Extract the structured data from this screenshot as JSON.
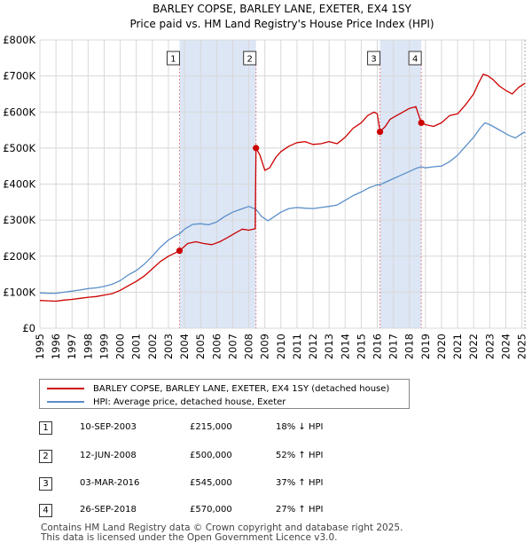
{
  "chart_data": {
    "type": "line",
    "title": "BARLEY COPSE, BARLEY LANE, EXETER, EX4 1SY",
    "subtitle": "Price paid vs. HM Land Registry's House Price Index (HPI)",
    "xlim": [
      1995.0,
      2025.3
    ],
    "ylim": [
      0,
      800000
    ],
    "y_ticks": [
      {
        "value": 0,
        "label": "£0"
      },
      {
        "value": 100000,
        "label": "£100K"
      },
      {
        "value": 200000,
        "label": "£200K"
      },
      {
        "value": 300000,
        "label": "£300K"
      },
      {
        "value": 400000,
        "label": "£400K"
      },
      {
        "value": 500000,
        "label": "£500K"
      },
      {
        "value": 600000,
        "label": "£600K"
      },
      {
        "value": 700000,
        "label": "£700K"
      },
      {
        "value": 800000,
        "label": "£800K"
      }
    ],
    "x_ticks": [
      "1995",
      "1996",
      "1997",
      "1998",
      "1999",
      "2000",
      "2001",
      "2002",
      "2003",
      "2004",
      "2005",
      "2006",
      "2007",
      "2008",
      "2009",
      "2010",
      "2011",
      "2012",
      "2013",
      "2014",
      "2015",
      "2016",
      "2017",
      "2018",
      "2019",
      "2020",
      "2021",
      "2022",
      "2023",
      "2024",
      "2025"
    ],
    "grid": true,
    "shaded_periods": [
      [
        2003.69,
        2008.45
      ],
      [
        2016.17,
        2018.74
      ]
    ],
    "colors": {
      "property": "#cc0000",
      "hpi": "#5b8fc9",
      "shade": "#dce6f5",
      "grid": "#d8d8d8",
      "vline": "#e07070"
    },
    "series": [
      {
        "name": "BARLEY COPSE, BARLEY LANE, EXETER, EX4 1SY (detached house)",
        "color": "#cc0000",
        "points": [
          [
            1995.0,
            77000
          ],
          [
            1995.5,
            76000
          ],
          [
            1996.0,
            75000
          ],
          [
            1996.5,
            78000
          ],
          [
            1997.0,
            80000
          ],
          [
            1997.5,
            83000
          ],
          [
            1998.0,
            86000
          ],
          [
            1998.5,
            88000
          ],
          [
            1999.0,
            92000
          ],
          [
            1999.5,
            96000
          ],
          [
            2000.0,
            105000
          ],
          [
            2000.5,
            118000
          ],
          [
            2001.0,
            130000
          ],
          [
            2001.5,
            145000
          ],
          [
            2002.0,
            165000
          ],
          [
            2002.5,
            185000
          ],
          [
            2003.0,
            200000
          ],
          [
            2003.69,
            215000
          ],
          [
            2004.2,
            235000
          ],
          [
            2004.7,
            240000
          ],
          [
            2005.2,
            235000
          ],
          [
            2005.7,
            232000
          ],
          [
            2006.2,
            240000
          ],
          [
            2006.7,
            252000
          ],
          [
            2007.2,
            265000
          ],
          [
            2007.6,
            275000
          ],
          [
            2008.0,
            272000
          ],
          [
            2008.4,
            276000
          ],
          [
            2008.45,
            500000
          ],
          [
            2008.7,
            480000
          ],
          [
            2009.0,
            438000
          ],
          [
            2009.3,
            445000
          ],
          [
            2009.7,
            475000
          ],
          [
            2010.0,
            490000
          ],
          [
            2010.5,
            505000
          ],
          [
            2011.0,
            515000
          ],
          [
            2011.5,
            518000
          ],
          [
            2012.0,
            510000
          ],
          [
            2012.5,
            512000
          ],
          [
            2013.0,
            518000
          ],
          [
            2013.5,
            512000
          ],
          [
            2014.0,
            530000
          ],
          [
            2014.5,
            555000
          ],
          [
            2015.0,
            570000
          ],
          [
            2015.4,
            590000
          ],
          [
            2015.8,
            600000
          ],
          [
            2016.0,
            595000
          ],
          [
            2016.17,
            545000
          ],
          [
            2016.5,
            560000
          ],
          [
            2016.8,
            580000
          ],
          [
            2017.2,
            590000
          ],
          [
            2017.6,
            600000
          ],
          [
            2018.0,
            610000
          ],
          [
            2018.4,
            615000
          ],
          [
            2018.74,
            570000
          ],
          [
            2019.0,
            565000
          ],
          [
            2019.5,
            560000
          ],
          [
            2020.0,
            570000
          ],
          [
            2020.5,
            590000
          ],
          [
            2021.0,
            595000
          ],
          [
            2021.5,
            620000
          ],
          [
            2022.0,
            650000
          ],
          [
            2022.3,
            680000
          ],
          [
            2022.6,
            705000
          ],
          [
            2022.9,
            700000
          ],
          [
            2023.2,
            690000
          ],
          [
            2023.6,
            672000
          ],
          [
            2024.0,
            660000
          ],
          [
            2024.4,
            650000
          ],
          [
            2024.8,
            668000
          ],
          [
            2025.2,
            680000
          ]
        ]
      },
      {
        "name": "HPI: Average price, detached house, Exeter",
        "color": "#5b8fc9",
        "points": [
          [
            1995.0,
            98000
          ],
          [
            1995.5,
            97000
          ],
          [
            1996.0,
            97000
          ],
          [
            1996.5,
            100000
          ],
          [
            1997.0,
            103000
          ],
          [
            1997.5,
            106000
          ],
          [
            1998.0,
            110000
          ],
          [
            1998.5,
            112000
          ],
          [
            1999.0,
            116000
          ],
          [
            1999.5,
            122000
          ],
          [
            2000.0,
            132000
          ],
          [
            2000.5,
            148000
          ],
          [
            2001.0,
            160000
          ],
          [
            2001.5,
            178000
          ],
          [
            2002.0,
            200000
          ],
          [
            2002.5,
            225000
          ],
          [
            2003.0,
            245000
          ],
          [
            2003.5,
            258000
          ],
          [
            2003.69,
            262000
          ],
          [
            2004.0,
            275000
          ],
          [
            2004.5,
            288000
          ],
          [
            2005.0,
            290000
          ],
          [
            2005.5,
            287000
          ],
          [
            2006.0,
            295000
          ],
          [
            2006.5,
            310000
          ],
          [
            2007.0,
            322000
          ],
          [
            2007.5,
            330000
          ],
          [
            2008.0,
            338000
          ],
          [
            2008.45,
            330000
          ],
          [
            2008.8,
            310000
          ],
          [
            2009.2,
            298000
          ],
          [
            2009.6,
            310000
          ],
          [
            2010.0,
            322000
          ],
          [
            2010.5,
            332000
          ],
          [
            2011.0,
            335000
          ],
          [
            2011.5,
            333000
          ],
          [
            2012.0,
            332000
          ],
          [
            2012.5,
            335000
          ],
          [
            2013.0,
            338000
          ],
          [
            2013.5,
            342000
          ],
          [
            2014.0,
            355000
          ],
          [
            2014.5,
            368000
          ],
          [
            2015.0,
            378000
          ],
          [
            2015.5,
            390000
          ],
          [
            2016.0,
            398000
          ],
          [
            2016.17,
            398000
          ],
          [
            2016.5,
            405000
          ],
          [
            2017.0,
            415000
          ],
          [
            2017.5,
            425000
          ],
          [
            2018.0,
            435000
          ],
          [
            2018.5,
            445000
          ],
          [
            2018.74,
            448000
          ],
          [
            2019.0,
            445000
          ],
          [
            2019.5,
            448000
          ],
          [
            2020.0,
            450000
          ],
          [
            2020.5,
            462000
          ],
          [
            2021.0,
            480000
          ],
          [
            2021.5,
            505000
          ],
          [
            2022.0,
            530000
          ],
          [
            2022.4,
            555000
          ],
          [
            2022.7,
            570000
          ],
          [
            2023.0,
            565000
          ],
          [
            2023.4,
            555000
          ],
          [
            2023.8,
            545000
          ],
          [
            2024.2,
            535000
          ],
          [
            2024.6,
            528000
          ],
          [
            2025.0,
            540000
          ],
          [
            2025.2,
            545000
          ]
        ]
      }
    ],
    "sales": [
      {
        "label": "1",
        "x": 2003.69,
        "value": 215000
      },
      {
        "label": "2",
        "x": 2008.45,
        "value": 500000
      },
      {
        "label": "3",
        "x": 2016.17,
        "value": 545000
      },
      {
        "label": "4",
        "x": 2018.74,
        "value": 570000
      }
    ]
  },
  "legend": {
    "property_label": "BARLEY COPSE, BARLEY LANE, EXETER, EX4 1SY (detached house)",
    "hpi_label": "HPI: Average price, detached house, Exeter"
  },
  "sales_table": [
    {
      "num": "1",
      "date": "10-SEP-2003",
      "price": "£215,000",
      "hpi": "18% ↓ HPI"
    },
    {
      "num": "2",
      "date": "12-JUN-2008",
      "price": "£500,000",
      "hpi": "52% ↑ HPI"
    },
    {
      "num": "3",
      "date": "03-MAR-2016",
      "price": "£545,000",
      "hpi": "37% ↑ HPI"
    },
    {
      "num": "4",
      "date": "26-SEP-2018",
      "price": "£570,000",
      "hpi": "27% ↑ HPI"
    }
  ],
  "footer": {
    "line1": "Contains HM Land Registry data © Crown copyright and database right 2025.",
    "line2": "This data is licensed under the Open Government Licence v3.0."
  }
}
